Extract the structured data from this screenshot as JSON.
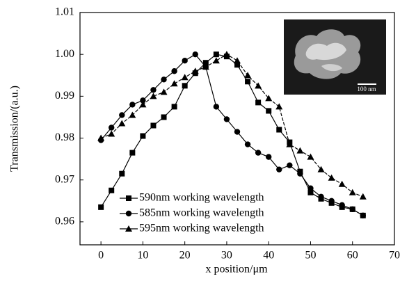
{
  "chart_data": {
    "type": "line",
    "x_label": "x position/μm",
    "y_label": "Transmission/(a.u.)",
    "x": [
      0,
      2.5,
      5,
      7.5,
      10,
      12.5,
      15,
      17.5,
      20,
      22.5,
      25,
      27.5,
      30,
      32.5,
      35,
      37.5,
      40,
      42.5,
      45,
      47.5,
      50,
      52.5,
      55,
      57.5,
      60,
      62.5
    ],
    "series": [
      {
        "name": "590nm working wavelength",
        "color": "#000000",
        "marker": "square",
        "linestyle": "solid",
        "values": [
          0.9635,
          0.9675,
          0.9715,
          0.9765,
          0.9805,
          0.983,
          0.985,
          0.9875,
          0.9925,
          0.9955,
          0.998,
          1.0,
          0.9995,
          0.9975,
          0.9935,
          0.9885,
          0.9865,
          0.982,
          0.979,
          0.972,
          0.967,
          0.9655,
          0.9645,
          0.9635,
          0.963,
          0.9615
        ]
      },
      {
        "name": "585nm working wavelength",
        "color": "#000000",
        "marker": "circle",
        "linestyle": "solid",
        "values": [
          0.9795,
          0.9825,
          0.9855,
          0.988,
          0.989,
          0.9915,
          0.994,
          0.996,
          0.9985,
          1.0,
          0.997,
          0.9875,
          0.9845,
          0.9815,
          0.9785,
          0.9765,
          0.9755,
          0.9725,
          0.9735,
          0.9715,
          0.968,
          0.966,
          0.965,
          0.964,
          0.963,
          0.9615
        ]
      },
      {
        "name": "595nm working wavelength",
        "color": "#000000",
        "marker": "triangle",
        "linestyle": "dashed",
        "values": [
          0.98,
          0.981,
          0.9835,
          0.9855,
          0.988,
          0.99,
          0.991,
          0.993,
          0.9945,
          0.996,
          0.997,
          0.9985,
          1.0,
          0.9985,
          0.995,
          0.9925,
          0.9895,
          0.9875,
          0.9785,
          0.977,
          0.9755,
          0.9725,
          0.9705,
          0.969,
          0.967,
          0.966
        ]
      }
    ],
    "xlim": [
      -5,
      70
    ],
    "xticks": [
      0,
      10,
      20,
      30,
      40,
      50,
      60,
      70
    ],
    "ylim": [
      0.9545,
      1.01
    ],
    "yticks": [
      0.96,
      0.97,
      0.98,
      0.99,
      {
        "value": 1,
        "label": "1.00"
      },
      1.01
    ],
    "legend": "lower left",
    "inset_scale_label": "100 nm"
  }
}
